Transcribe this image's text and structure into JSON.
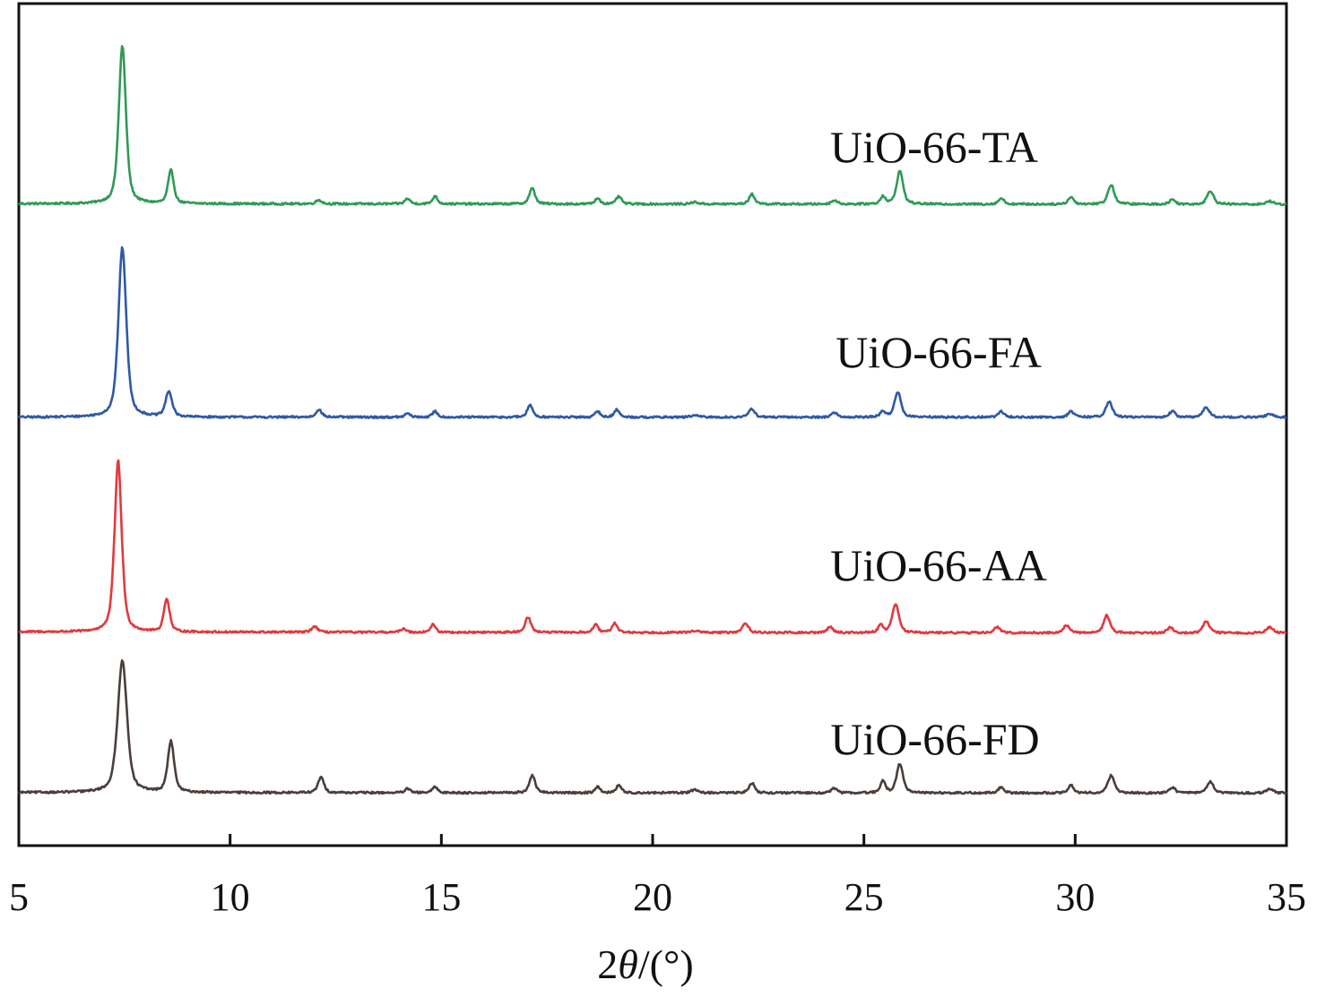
{
  "chart_data": {
    "type": "line",
    "xlabel": {
      "prefix": "2",
      "symbol": "θ",
      "suffix": "/(°)"
    },
    "xlim": [
      5,
      35
    ],
    "x_ticks": [
      "5",
      "10",
      "15",
      "20",
      "25",
      "30",
      "35"
    ],
    "y_ticks_shown": false,
    "series": [
      {
        "name": "UiO-66-TA",
        "color": "#2e9a55",
        "baseline": 0.15,
        "baseline_slope": -0.0005,
        "peaks": [
          [
            7.45,
            4.05,
            0.1
          ],
          [
            8.6,
            0.85,
            0.08
          ],
          [
            12.1,
            0.1,
            0.08
          ],
          [
            14.2,
            0.14,
            0.07
          ],
          [
            14.85,
            0.2,
            0.07
          ],
          [
            17.15,
            0.4,
            0.08
          ],
          [
            18.7,
            0.15,
            0.07
          ],
          [
            19.2,
            0.2,
            0.07
          ],
          [
            21.0,
            0.05,
            0.1
          ],
          [
            22.35,
            0.25,
            0.08
          ],
          [
            24.3,
            0.1,
            0.08
          ],
          [
            25.45,
            0.2,
            0.07
          ],
          [
            25.85,
            0.85,
            0.09
          ],
          [
            28.25,
            0.15,
            0.08
          ],
          [
            29.9,
            0.18,
            0.08
          ],
          [
            30.85,
            0.5,
            0.09
          ],
          [
            32.3,
            0.12,
            0.08
          ],
          [
            33.2,
            0.35,
            0.09
          ],
          [
            34.6,
            0.08,
            0.1
          ]
        ]
      },
      {
        "name": "UiO-66-FA",
        "color": "#2f58a8",
        "baseline": 0.12,
        "baseline_slope": 0.0,
        "peaks": [
          [
            7.45,
            4.35,
            0.11
          ],
          [
            8.55,
            0.65,
            0.09
          ],
          [
            12.1,
            0.2,
            0.08
          ],
          [
            14.2,
            0.1,
            0.07
          ],
          [
            14.85,
            0.15,
            0.07
          ],
          [
            17.1,
            0.3,
            0.08
          ],
          [
            18.7,
            0.15,
            0.07
          ],
          [
            19.15,
            0.2,
            0.07
          ],
          [
            21.0,
            0.05,
            0.1
          ],
          [
            22.35,
            0.22,
            0.08
          ],
          [
            24.3,
            0.12,
            0.08
          ],
          [
            25.45,
            0.15,
            0.07
          ],
          [
            25.8,
            0.65,
            0.09
          ],
          [
            28.25,
            0.15,
            0.08
          ],
          [
            29.9,
            0.15,
            0.08
          ],
          [
            30.8,
            0.4,
            0.09
          ],
          [
            32.3,
            0.15,
            0.08
          ],
          [
            33.1,
            0.25,
            0.09
          ],
          [
            34.6,
            0.08,
            0.1
          ]
        ]
      },
      {
        "name": "UiO-66-AA",
        "color": "#e03a3e",
        "baseline": 0.15,
        "baseline_slope": -0.001,
        "peaks": [
          [
            7.35,
            4.4,
            0.1
          ],
          [
            8.5,
            0.85,
            0.08
          ],
          [
            12.0,
            0.15,
            0.08
          ],
          [
            14.1,
            0.1,
            0.07
          ],
          [
            14.8,
            0.2,
            0.07
          ],
          [
            17.05,
            0.4,
            0.08
          ],
          [
            18.65,
            0.2,
            0.07
          ],
          [
            19.1,
            0.25,
            0.07
          ],
          [
            21.0,
            0.05,
            0.1
          ],
          [
            22.2,
            0.25,
            0.08
          ],
          [
            24.2,
            0.15,
            0.08
          ],
          [
            25.4,
            0.2,
            0.07
          ],
          [
            25.75,
            0.75,
            0.09
          ],
          [
            28.15,
            0.15,
            0.08
          ],
          [
            29.8,
            0.2,
            0.08
          ],
          [
            30.75,
            0.45,
            0.09
          ],
          [
            32.25,
            0.15,
            0.08
          ],
          [
            33.1,
            0.3,
            0.09
          ],
          [
            34.6,
            0.15,
            0.1
          ]
        ]
      },
      {
        "name": "UiO-66-FD",
        "color": "#4a3e3a",
        "baseline": 0.12,
        "baseline_slope": -0.0005,
        "peaks": [
          [
            7.45,
            3.4,
            0.13
          ],
          [
            8.6,
            1.3,
            0.09
          ],
          [
            12.15,
            0.4,
            0.08
          ],
          [
            14.2,
            0.1,
            0.07
          ],
          [
            14.85,
            0.15,
            0.07
          ],
          [
            17.15,
            0.45,
            0.08
          ],
          [
            18.7,
            0.15,
            0.07
          ],
          [
            19.2,
            0.2,
            0.07
          ],
          [
            21.0,
            0.08,
            0.1
          ],
          [
            22.35,
            0.25,
            0.08
          ],
          [
            24.3,
            0.12,
            0.08
          ],
          [
            25.45,
            0.3,
            0.07
          ],
          [
            25.85,
            0.75,
            0.09
          ],
          [
            28.25,
            0.15,
            0.08
          ],
          [
            29.9,
            0.2,
            0.08
          ],
          [
            30.85,
            0.45,
            0.09
          ],
          [
            32.3,
            0.15,
            0.08
          ],
          [
            33.2,
            0.3,
            0.09
          ],
          [
            34.6,
            0.1,
            0.1
          ]
        ]
      }
    ]
  }
}
